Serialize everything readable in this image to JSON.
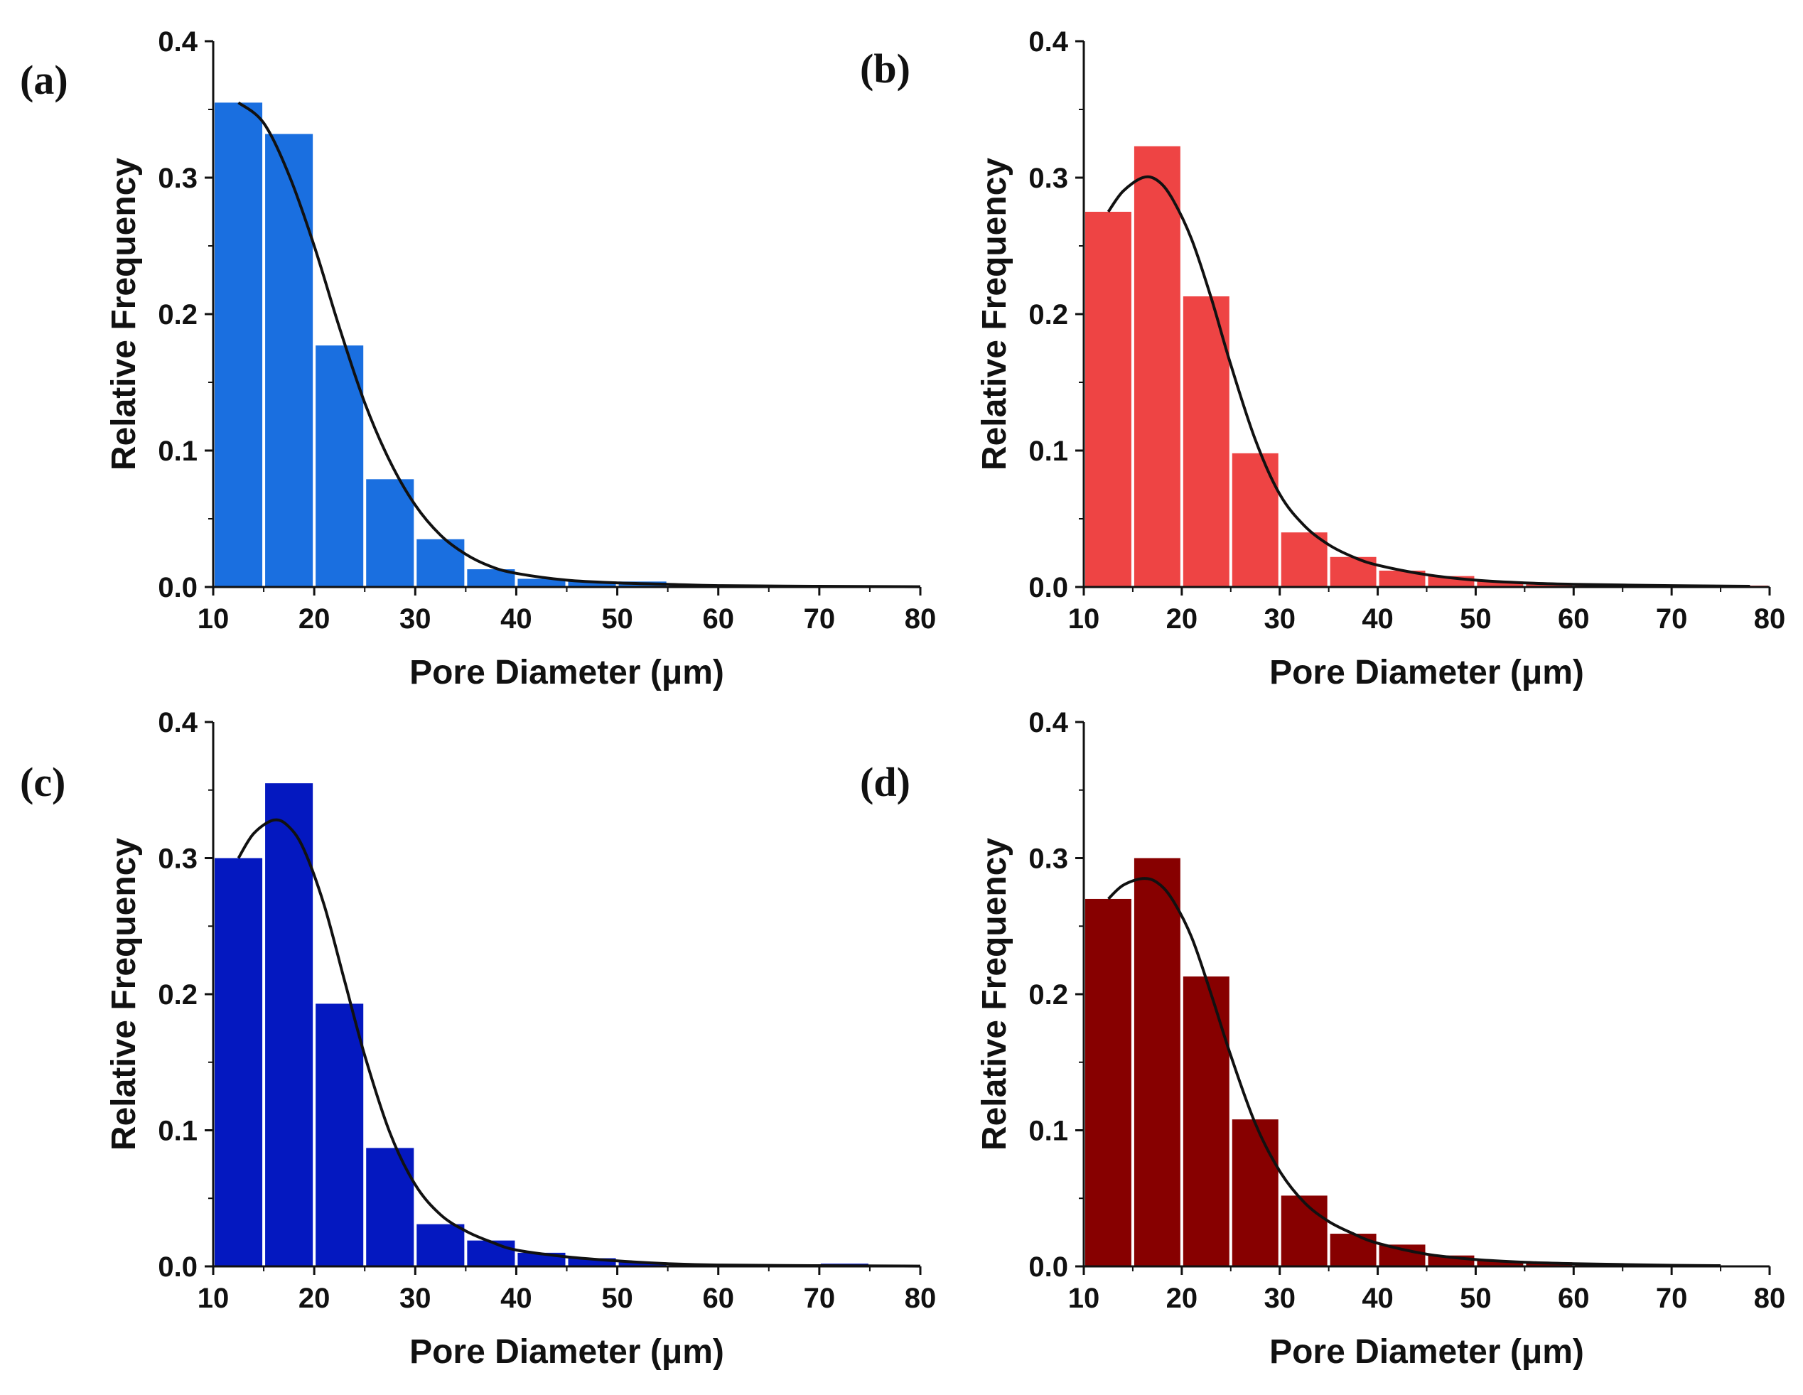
{
  "figure": {
    "description_free": true
  },
  "chart_data": [
    {
      "type": "bar",
      "panel_label": "(a)",
      "bar_color": "#1A6FE0",
      "bin_edges": [
        10,
        15,
        20,
        25,
        30,
        35,
        40,
        45,
        50,
        55,
        60,
        65,
        70,
        75,
        80
      ],
      "values": [
        0.355,
        0.332,
        0.177,
        0.079,
        0.035,
        0.013,
        0.006,
        0.004,
        0.004,
        0.002,
        0.001,
        0.001,
        0.001,
        0.001
      ],
      "fit_curve": {
        "x": [
          12.5,
          15,
          17.5,
          20,
          22.5,
          25,
          27.5,
          30,
          32.5,
          35,
          37.5,
          40,
          45,
          50,
          55,
          60,
          70,
          80
        ],
        "y": [
          0.355,
          0.34,
          0.302,
          0.25,
          0.19,
          0.135,
          0.092,
          0.06,
          0.038,
          0.024,
          0.015,
          0.01,
          0.005,
          0.003,
          0.002,
          0.001,
          0.0005,
          0.0002
        ]
      },
      "xlabel": "Pore Diameter (μm)",
      "ylabel": "Relative Frequency",
      "xlim": [
        10,
        80
      ],
      "ylim": [
        0,
        0.4
      ],
      "xticks": [
        10,
        20,
        30,
        40,
        50,
        60,
        70,
        80
      ],
      "yticks": [
        "0.0",
        "0.1",
        "0.2",
        "0.3",
        "0.4"
      ]
    },
    {
      "type": "bar",
      "panel_label": "(b)",
      "bar_color": "#EE4444",
      "bin_edges": [
        10,
        15,
        20,
        25,
        30,
        35,
        40,
        45,
        50,
        55,
        60,
        65,
        70,
        75,
        80
      ],
      "values": [
        0.275,
        0.323,
        0.213,
        0.098,
        0.04,
        0.022,
        0.012,
        0.008,
        0.004,
        0.002,
        0.001,
        0.001,
        0.001,
        0.001
      ],
      "fit_curve": {
        "x": [
          12.5,
          14,
          16,
          17.5,
          19,
          21,
          23,
          25,
          27.5,
          30,
          32.5,
          35,
          37.5,
          40,
          45,
          50,
          55,
          60,
          70,
          78
        ],
        "y": [
          0.275,
          0.29,
          0.3,
          0.298,
          0.285,
          0.255,
          0.212,
          0.163,
          0.108,
          0.068,
          0.045,
          0.031,
          0.022,
          0.016,
          0.009,
          0.005,
          0.003,
          0.002,
          0.001,
          0.0005
        ]
      },
      "xlabel": "Pore Diameter (μm)",
      "ylabel": "Relative Frequency",
      "xlim": [
        10,
        80
      ],
      "ylim": [
        0,
        0.4
      ],
      "xticks": [
        10,
        20,
        30,
        40,
        50,
        60,
        70,
        80
      ],
      "yticks": [
        "0.0",
        "0.1",
        "0.2",
        "0.3",
        "0.4"
      ]
    },
    {
      "type": "bar",
      "panel_label": "(c)",
      "bar_color": "#0418C0",
      "bin_edges": [
        10,
        15,
        20,
        25,
        30,
        35,
        40,
        45,
        50,
        55,
        60,
        65,
        70,
        75,
        80
      ],
      "values": [
        0.3,
        0.355,
        0.193,
        0.087,
        0.031,
        0.019,
        0.01,
        0.006,
        0.003,
        0.001,
        0.001,
        0.001,
        0.002,
        0.0
      ],
      "fit_curve": {
        "x": [
          12.5,
          14,
          16,
          17.5,
          19,
          21,
          23,
          25,
          27.5,
          30,
          32.5,
          35,
          37.5,
          40,
          45,
          50,
          55,
          60,
          70,
          80
        ],
        "y": [
          0.3,
          0.318,
          0.328,
          0.323,
          0.306,
          0.265,
          0.21,
          0.155,
          0.098,
          0.06,
          0.038,
          0.026,
          0.018,
          0.012,
          0.007,
          0.004,
          0.002,
          0.001,
          0.0005,
          0.0002
        ]
      },
      "xlabel": "Pore Diameter (μm)",
      "ylabel": "Relative Frequency",
      "xlim": [
        10,
        80
      ],
      "ylim": [
        0,
        0.4
      ],
      "xticks": [
        10,
        20,
        30,
        40,
        50,
        60,
        70,
        80
      ],
      "yticks": [
        "0.0",
        "0.1",
        "0.2",
        "0.3",
        "0.4"
      ]
    },
    {
      "type": "bar",
      "panel_label": "(d)",
      "bar_color": "#870000",
      "bin_edges": [
        10,
        15,
        20,
        25,
        30,
        35,
        40,
        45,
        50,
        55,
        60,
        65,
        70,
        75,
        80
      ],
      "values": [
        0.27,
        0.3,
        0.213,
        0.108,
        0.052,
        0.024,
        0.016,
        0.008,
        0.004,
        0.003,
        0.002,
        0.001,
        0.001,
        0.0
      ],
      "fit_curve": {
        "x": [
          12.5,
          14,
          16,
          17.5,
          19,
          21,
          23,
          25,
          27.5,
          30,
          32.5,
          35,
          37.5,
          40,
          45,
          50,
          55,
          60,
          70,
          75
        ],
        "y": [
          0.27,
          0.28,
          0.285,
          0.282,
          0.27,
          0.242,
          0.2,
          0.155,
          0.105,
          0.07,
          0.047,
          0.033,
          0.024,
          0.017,
          0.009,
          0.005,
          0.003,
          0.002,
          0.0008,
          0.0005
        ]
      },
      "xlabel": "Pore Diameter (μm)",
      "ylabel": "Relative Frequency",
      "xlim": [
        10,
        80
      ],
      "ylim": [
        0,
        0.4
      ],
      "xticks": [
        10,
        20,
        30,
        40,
        50,
        60,
        70,
        80
      ],
      "yticks": [
        "0.0",
        "0.1",
        "0.2",
        "0.3",
        "0.4"
      ]
    }
  ]
}
